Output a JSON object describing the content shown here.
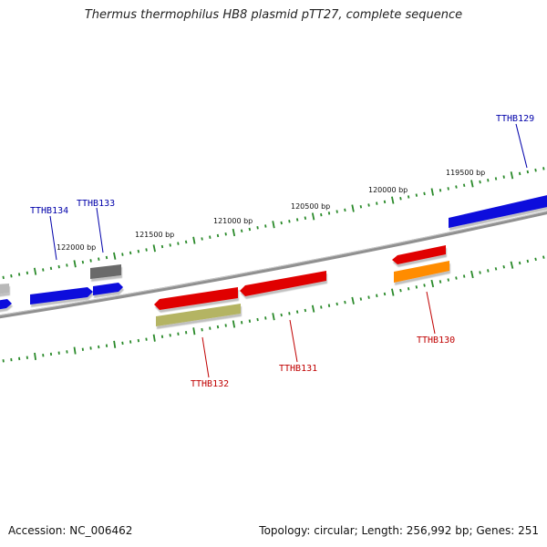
{
  "title": "Thermus thermophilus HB8 plasmid pTT27, complete sequence",
  "footer": {
    "accession": "Accession: NC_006462",
    "summary": "Topology: circular; Length: 256,992 bp; Genes: 251"
  },
  "coordinate_labels": [
    "122000 bp",
    "121500 bp",
    "121000 bp",
    "120500 bp",
    "120000 bp",
    "119500 bp"
  ],
  "colors": {
    "forward_gene": "#0a0adc",
    "reverse_gene": "#e00000",
    "rna_gene": "#ff8c00",
    "pseudo_gene": "#b4b464",
    "other_gene": "#707070",
    "light_gene": "#b0b0b0",
    "backbone": "#808080",
    "ticks": "#2a8a2a",
    "forward_label": "#0000aa",
    "reverse_label": "#c00000"
  },
  "gene_labels": {
    "forward": [
      "TTHB134",
      "TTHB133",
      "TTHB129"
    ],
    "reverse": [
      "TTHB132",
      "TTHB131",
      "TTHB130"
    ]
  }
}
